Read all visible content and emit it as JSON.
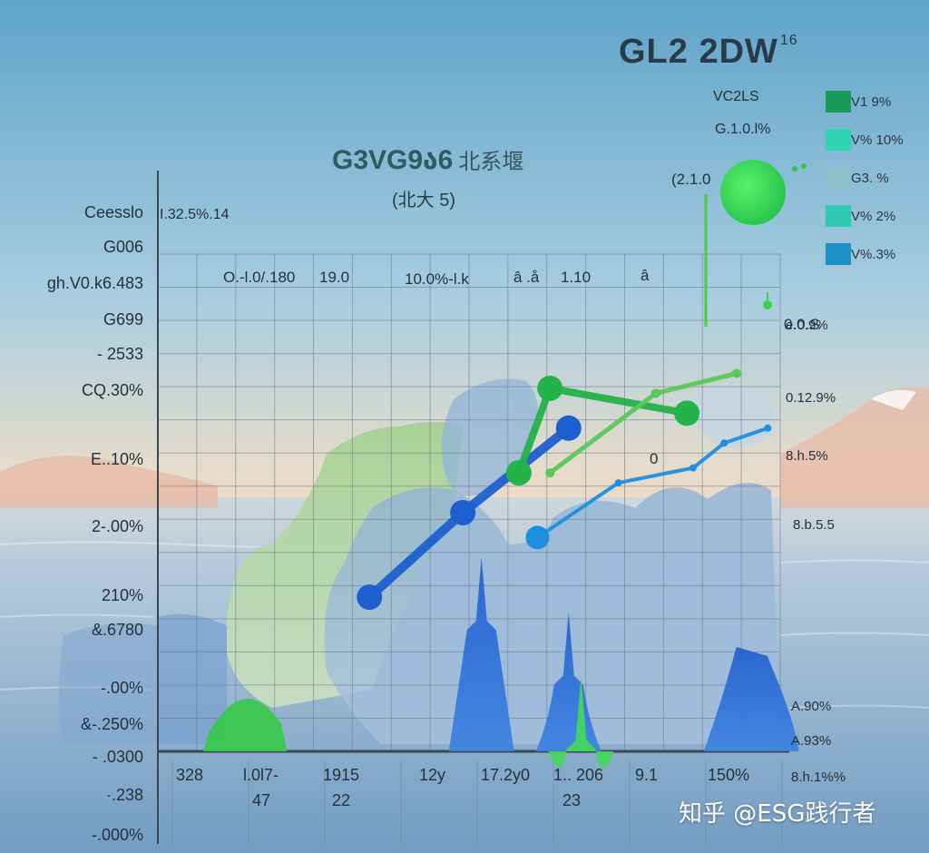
{
  "header": {
    "title": "GL2  2DW",
    "title_suffix": "16"
  },
  "chart_title": "G3VG9ა6",
  "chart_title_cjk": "北系堰",
  "chart_subtitle": "(北大 5)",
  "watermark": "知乎 @ESG践行者",
  "legend_header": [
    "VC2LS",
    "G.1.0.l%"
  ],
  "legend": [
    {
      "label": "V1 9%",
      "color": "#1a9a5a"
    },
    {
      "label": "V% 10%",
      "color": "#2fd4b0"
    },
    {
      "label": "G3. %",
      "color": "#8cc0c8"
    },
    {
      "label": "V% 2%",
      "color": "#2ec9b0"
    },
    {
      "label": "V%.3%",
      "color": "#1e90c8"
    }
  ],
  "colors": {
    "green_series": "#24b24a",
    "blue_series": "#1e5fcf",
    "cyan_series": "#1e8fe0",
    "grid": "#6a7a88"
  },
  "left_labels": [
    "Ceesslo",
    "G006",
    "gh.V0.k6.483",
    "G699",
    "- 2533",
    "CQ.30%",
    "E..10%",
    "2-.00%",
    "210%",
    "&.6780",
    "-.00%",
    "&-.250%",
    "- .0300",
    "·.238",
    "-.000%"
  ],
  "top_left_label": "I.32.5%.14",
  "right_labels": [
    "e.0.9%",
    "0.12.9%",
    "8.h.5%",
    "8.b.5.5",
    "A.90%",
    "A.93%",
    "8.h.1%%"
  ],
  "x_labels": [
    {
      "line1": "328",
      "line2": ""
    },
    {
      "line1": "l.0l7-",
      "line2": "47"
    },
    {
      "line1": "1915",
      "line2": "22"
    },
    {
      "line1": "12y",
      "line2": ""
    },
    {
      "line1": "17.2y0",
      "line2": ""
    },
    {
      "line1": "1.. 206",
      "line2": "23"
    },
    {
      "line1": "9.1",
      "line2": ""
    },
    {
      "line1": "150%",
      "line2": ""
    }
  ],
  "annotations": [
    "O.-l.0/.180",
    "19.0",
    "10.0%-l.k",
    "â .å",
    "1.10",
    "â",
    "(2.1.0",
    "0",
    "0.0.S"
  ],
  "chart_data": {
    "type": "line",
    "title": "G3VG9ა6 北系堰",
    "subtitle": "(北大 5)",
    "xlim": [
      0,
      10
    ],
    "ylim": [
      0,
      10
    ],
    "grid": true,
    "legend_position": "top-right",
    "series": [
      {
        "name": "",
        "color": "#1e5fcf",
        "points": [
          [
            3.4,
            3.1
          ],
          [
            4.9,
            4.8
          ],
          [
            6.6,
            6.5
          ]
        ]
      },
      {
        "name": "",
        "color": "#24b24a",
        "points": [
          [
            5.8,
            5.6
          ],
          [
            6.3,
            7.3
          ],
          [
            8.5,
            6.8
          ]
        ]
      },
      {
        "name": "",
        "color": "#1e8fe0",
        "points": [
          [
            6.1,
            4.3
          ],
          [
            7.4,
            5.4
          ],
          [
            8.6,
            5.7
          ],
          [
            9.1,
            6.2
          ],
          [
            9.8,
            6.5
          ]
        ]
      },
      {
        "name": "",
        "color": "#58c858",
        "points": [
          [
            6.3,
            5.6
          ],
          [
            8.0,
            7.2
          ],
          [
            9.3,
            7.6
          ]
        ]
      }
    ],
    "bars": [
      {
        "x": 1.4,
        "value": 1.1,
        "color": "#38c84a"
      },
      {
        "x": 5.2,
        "value": 3.9,
        "color": "#1e5fcf"
      },
      {
        "x": 6.6,
        "value": 2.8,
        "color": "#1e5fcf"
      },
      {
        "x": 6.8,
        "value": 1.5,
        "color": "#44d85a"
      },
      {
        "x": 9.5,
        "value": 2.1,
        "color": "#1e5fcf"
      }
    ],
    "bubble": {
      "x": 9.5,
      "y": 9.0,
      "value": "2.1.0",
      "color": "#3cd24a"
    }
  }
}
